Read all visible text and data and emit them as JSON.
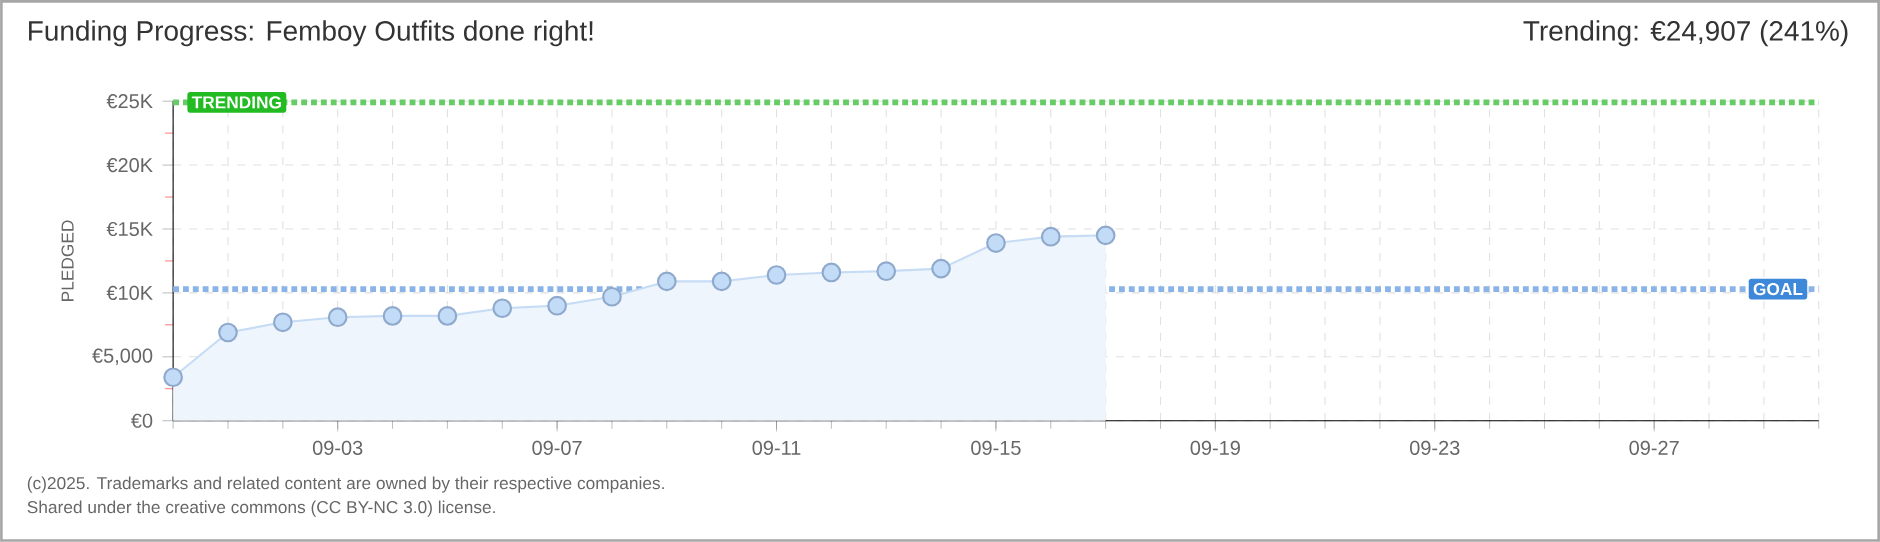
{
  "chart_data": {
    "type": "area",
    "title": "Funding Progress: Femboy Outfits done right!",
    "subtitle": "Trending: €24,907 (241%)",
    "ylabel": "PLEDGED",
    "x": [
      "2025-08-31",
      "2025-09-01",
      "2025-09-02",
      "2025-09-03",
      "2025-09-04",
      "2025-09-05",
      "2025-09-06",
      "2025-09-07",
      "2025-09-08",
      "2025-09-09",
      "2025-09-10",
      "2025-09-11",
      "2025-09-12",
      "2025-09-13",
      "2025-09-14",
      "2025-09-15",
      "2025-09-16",
      "2025-09-17"
    ],
    "series": [
      {
        "color": "#c6dcf5",
        "values": [
          3400,
          6900,
          7700,
          8100,
          8200,
          8200,
          8800,
          9000,
          9700,
          10900,
          10900,
          11400,
          11600,
          11700,
          11900,
          13900,
          14400,
          14500
        ]
      }
    ],
    "marker": "circle",
    "grid": true,
    "xlim": [
      "2025-08-31",
      "2025-09-30"
    ],
    "xticks": [
      {
        "value": "2025-09-03",
        "label": "09-03"
      },
      {
        "value": "2025-09-07",
        "label": "09-07"
      },
      {
        "value": "2025-09-11",
        "label": "09-11"
      },
      {
        "value": "2025-09-15",
        "label": "09-15"
      },
      {
        "value": "2025-09-19",
        "label": "09-19"
      },
      {
        "value": "2025-09-23",
        "label": "09-23"
      },
      {
        "value": "2025-09-27",
        "label": "09-27"
      }
    ],
    "ylim": [
      0,
      25000
    ],
    "yticks": [
      {
        "value": 0,
        "label": "€0"
      },
      {
        "value": 5000,
        "label": "€5,000"
      },
      {
        "value": 10000,
        "label": "€10K"
      },
      {
        "value": 15000,
        "label": "€15K"
      },
      {
        "value": 20000,
        "label": "€20K"
      },
      {
        "value": 25000,
        "label": "€25K"
      }
    ],
    "ref_lines": [
      {
        "axis": "y",
        "value": 24907,
        "label": "TRENDING",
        "color": "#66cc66",
        "line_style": "dotted"
      },
      {
        "axis": "y",
        "value": 10300,
        "label": "GOAL",
        "color": "#8ab4e8",
        "line_style": "dotted"
      }
    ],
    "annotations": [
      "(c)2025. Trademarks and related content are owned by their respective companies.",
      "Shared under the creative commons (CC BY-NC 3.0) license."
    ]
  }
}
